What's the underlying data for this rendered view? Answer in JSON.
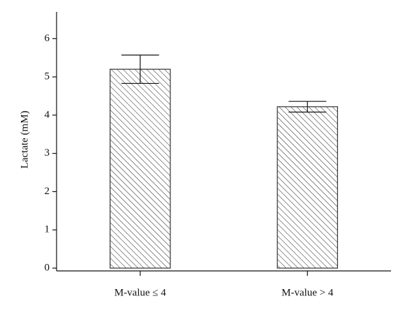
{
  "chart_data": {
    "type": "bar",
    "y_label": "Lactate (mM)",
    "categories": [
      "M-value ≤ 4",
      "M-value > 4"
    ],
    "values": [
      5.2,
      4.22
    ],
    "errors": [
      0.37,
      0.14
    ],
    "color": "#333333",
    "ylim": [
      0,
      6.7
    ],
    "yticks": [
      0,
      1,
      2,
      3,
      4,
      5,
      6
    ],
    "grid": false
  }
}
